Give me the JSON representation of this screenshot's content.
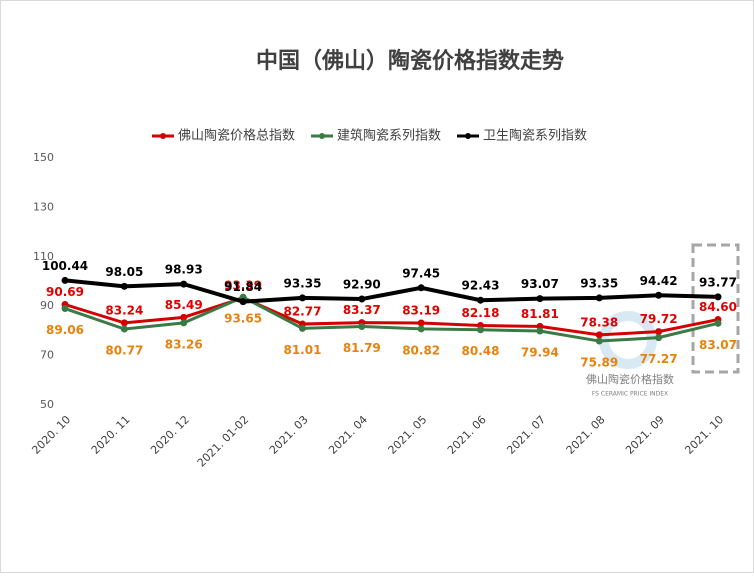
{
  "chart_data": {
    "type": "line",
    "title": "中国（佛山）陶瓷价格指数走势",
    "categories": [
      "2020. 10",
      "2020. 11",
      "2020. 12",
      "2021. 01-02",
      "2021. 03",
      "2021. 04",
      "2021. 05",
      "2021. 06",
      "2021. 07",
      "2021. 08",
      "2021. 09",
      "2021. 10"
    ],
    "series": [
      {
        "name": "佛山陶瓷价格总指数",
        "color": "#d40000",
        "label_color": "#e00000",
        "values": [
          90.69,
          83.24,
          85.49,
          93.39,
          82.77,
          83.37,
          83.19,
          82.18,
          81.81,
          78.38,
          79.72,
          84.6
        ],
        "value_labels": [
          "90.69",
          "83.24",
          "85.49",
          "93.39",
          "82.77",
          "83.37",
          "83.19",
          "82.18",
          "81.81",
          "78.38",
          "79.72",
          "84.60"
        ]
      },
      {
        "name": "建筑陶瓷系列指数",
        "color": "#3b7a45",
        "label_color": "#e8820c",
        "values": [
          89.06,
          80.77,
          83.26,
          93.65,
          81.01,
          81.79,
          80.82,
          80.48,
          79.94,
          75.89,
          77.27,
          83.07
        ],
        "value_labels": [
          "89.06",
          "80.77",
          "83.26",
          "93.65",
          "81.01",
          "81.79",
          "80.82",
          "80.48",
          "79.94",
          "75.89",
          "77.27",
          "83.07"
        ]
      },
      {
        "name": "卫生陶瓷系列指数",
        "color": "#000000",
        "label_color": "#000000",
        "values": [
          100.44,
          98.05,
          98.93,
          91.84,
          93.35,
          92.9,
          97.45,
          92.43,
          93.07,
          93.35,
          94.42,
          93.77
        ],
        "value_labels": [
          "100.44",
          "98.05",
          "98.93",
          "91.84",
          "93.35",
          "92.90",
          "97.45",
          "92.43",
          "93.07",
          "93.35",
          "94.42",
          "93.77"
        ]
      }
    ],
    "ylim": [
      50,
      150
    ],
    "yticks": [
      50,
      70,
      90,
      110,
      130,
      150
    ],
    "grid": false,
    "legend": "top",
    "watermark": {
      "title": "佛山陶瓷价格指数",
      "subtitle": "FS CERAMIC PRICE INDEX"
    }
  }
}
